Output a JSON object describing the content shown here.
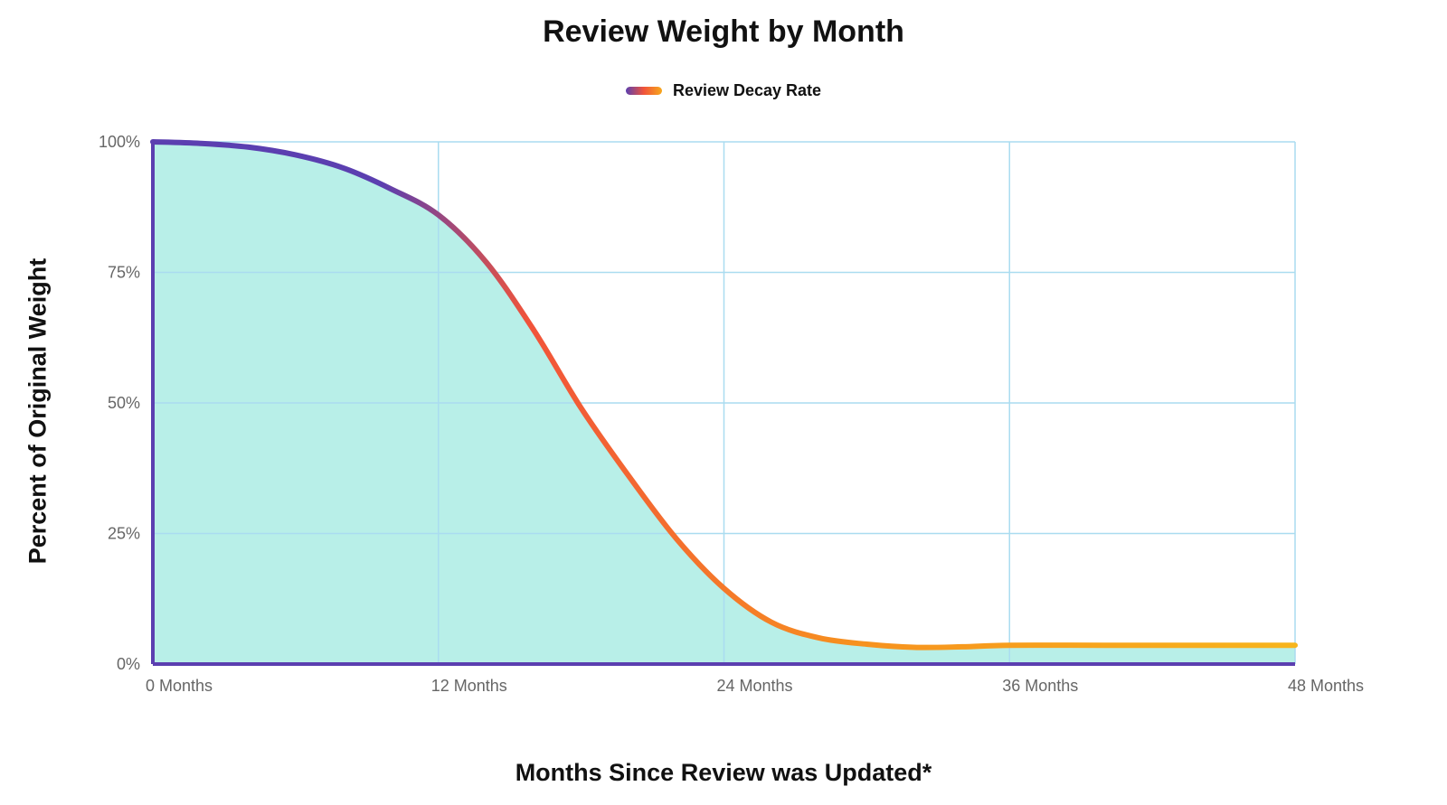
{
  "chart_data": {
    "type": "area",
    "title": "Review Weight by Month",
    "xlabel": "Months Since Review was Updated*",
    "ylabel": "Percent of Original Weight",
    "legend": {
      "position": "top-center",
      "entries": [
        "Review Decay Rate"
      ]
    },
    "x_ticks": [
      {
        "value": 0,
        "label": "0 Months"
      },
      {
        "value": 12,
        "label": "12 Months"
      },
      {
        "value": 24,
        "label": "24 Months"
      },
      {
        "value": 36,
        "label": "36 Months"
      },
      {
        "value": 48,
        "label": "48 Months"
      }
    ],
    "y_ticks": [
      {
        "value": 0,
        "label": "0%"
      },
      {
        "value": 25,
        "label": "25%"
      },
      {
        "value": 50,
        "label": "50%"
      },
      {
        "value": 75,
        "label": "75%"
      },
      {
        "value": 100,
        "label": "100%"
      }
    ],
    "xlim": [
      0,
      48
    ],
    "ylim": [
      0,
      100
    ],
    "grid": true,
    "series": [
      {
        "name": "Review Decay Rate",
        "x": [
          0,
          2,
          4,
          6,
          8,
          10,
          12,
          14,
          16,
          18,
          20,
          22,
          24,
          26,
          28,
          30,
          32,
          34,
          36,
          40,
          44,
          48
        ],
        "y": [
          100,
          99.7,
          99,
          97.5,
          95,
          91,
          86,
          77,
          64,
          49,
          36,
          24,
          14.5,
          8,
          5,
          3.8,
          3.2,
          3.3,
          3.6,
          3.6,
          3.6,
          3.6
        ]
      }
    ],
    "colors": {
      "fill": "#b8efe8",
      "line_start": "#5b3fb0",
      "line_mid": "#f1543a",
      "line_end": "#f7b51c",
      "axis": "#5b3fb0",
      "grid": "#aadcf0"
    }
  }
}
